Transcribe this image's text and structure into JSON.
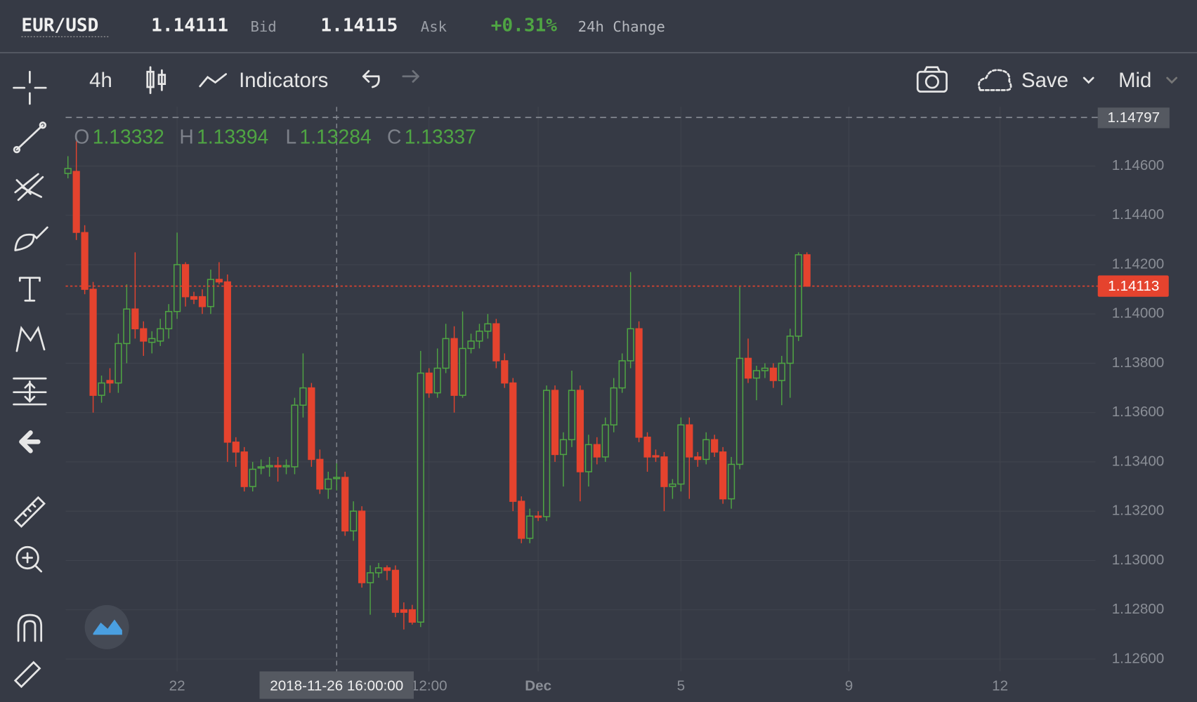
{
  "header": {
    "symbol": "EUR/USD",
    "bid": "1.14111",
    "bid_label": "Bid",
    "ask": "1.14115",
    "ask_label": "Ask",
    "change": "+0.31%",
    "change_label": "24h Change"
  },
  "toolbar": {
    "interval": "4h",
    "indicators": "Indicators",
    "save": "Save",
    "price_mode": "Mid"
  },
  "chart_data": {
    "type": "candlestick",
    "up_color": "#4fa543",
    "down_color": "#e5432e",
    "grid": true,
    "ohlc_labels": [
      "O",
      "H",
      "L",
      "C"
    ],
    "crosshair_label": "2018-11-26 16:00:00",
    "high_marker": 1.14797,
    "last_price": 1.14113,
    "ylim": [
      1.1255,
      1.1484
    ],
    "yticks": [
      {
        "value": 1.126,
        "label": "1.12600"
      },
      {
        "value": 1.128,
        "label": "1.12800"
      },
      {
        "value": 1.13,
        "label": "1.13000"
      },
      {
        "value": 1.132,
        "label": "1.13200"
      },
      {
        "value": 1.134,
        "label": "1.13400"
      },
      {
        "value": 1.136,
        "label": "1.13600"
      },
      {
        "value": 1.138,
        "label": "1.13800"
      },
      {
        "value": 1.14,
        "label": "1.14000"
      },
      {
        "value": 1.142,
        "label": "1.14200"
      },
      {
        "value": 1.144,
        "label": "1.14400"
      },
      {
        "value": 1.146,
        "label": "1.14600"
      }
    ],
    "categories": [
      null,
      null,
      null,
      null,
      null,
      null,
      null,
      null,
      null,
      null,
      null,
      null,
      null,
      "22",
      null,
      null,
      null,
      null,
      null,
      null,
      null,
      null,
      null,
      null,
      null,
      null,
      null,
      null,
      null,
      null,
      null,
      null,
      null,
      null,
      null,
      null,
      null,
      null,
      null,
      null,
      null,
      null,
      null,
      "12:00",
      null,
      null,
      null,
      null,
      null,
      null,
      null,
      null,
      null,
      null,
      null,
      null,
      "Dec",
      null,
      null,
      null,
      null,
      null,
      null,
      null,
      null,
      null,
      null,
      null,
      null,
      null,
      null,
      null,
      null,
      "5",
      null,
      null,
      null,
      null,
      null,
      null,
      null,
      null,
      null,
      null,
      null,
      null,
      null,
      null,
      null,
      null,
      null,
      null,
      null,
      "9",
      null,
      null,
      null,
      null,
      null,
      null,
      null,
      null,
      null,
      null,
      null,
      null,
      null,
      null,
      null,
      null,
      null,
      "12",
      null
    ],
    "open": [
      1.1457,
      1.14578,
      1.1433,
      1.141,
      1.1367,
      1.1373,
      1.1372,
      1.1388,
      1.1402,
      1.1394,
      1.13885,
      1.1389,
      1.1394,
      1.1401,
      1.142,
      1.1407,
      1.1407,
      1.1403,
      1.1414,
      1.1413,
      1.1348,
      1.1344,
      1.133,
      1.13375,
      1.1338,
      1.13385,
      1.1338,
      1.1338,
      1.1363,
      1.137,
      1.1341,
      1.1329,
      1.13332,
      1.13337,
      1.1312,
      1.132,
      1.1291,
      1.1295,
      1.1297,
      1.1296,
      1.128,
      1.128,
      1.1275,
      1.1376,
      1.1368,
      1.1378,
      1.139,
      1.1367,
      1.1386,
      1.1389,
      1.1393,
      1.1396,
      1.1381,
      1.1372,
      1.1324,
      1.1309,
      1.1318,
      1.13178,
      1.1369,
      1.1343,
      1.1349,
      1.1369,
      1.1336,
      1.1347,
      1.1342,
      1.1355,
      1.137,
      1.1381,
      1.1394,
      1.135,
      1.13425,
      1.1342,
      1.133,
      1.1331,
      1.1355,
      1.1342,
      1.1341,
      1.1349,
      1.1344,
      1.1325,
      1.1339,
      1.1382,
      1.1374,
      1.1377,
      1.1378,
      1.1373,
      1.138,
      1.1391,
      1.1424,
      null,
      null,
      null,
      null,
      null,
      null,
      null,
      null,
      null,
      null,
      null,
      null,
      null,
      null,
      null,
      null,
      null,
      null,
      null,
      null,
      null,
      null,
      null,
      null
    ],
    "high": [
      1.1464,
      1.147,
      1.1436,
      1.1413,
      1.1375,
      1.1378,
      1.1392,
      1.1412,
      1.1425,
      1.1397,
      1.1393,
      1.1398,
      1.1404,
      1.1433,
      1.1421,
      1.1409,
      1.141,
      1.1418,
      1.1421,
      1.1416,
      1.135,
      1.1346,
      1.134,
      1.1341,
      1.1342,
      1.1342,
      1.1341,
      1.1366,
      1.1384,
      1.1372,
      1.1345,
      1.1336,
      1.13394,
      1.1336,
      1.1324,
      1.1322,
      1.1298,
      1.1299,
      1.1298,
      1.1298,
      1.1283,
      1.1282,
      1.1385,
      1.1378,
      1.1386,
      1.1396,
      1.1395,
      1.1401,
      1.1392,
      1.1396,
      1.14,
      1.1398,
      1.1384,
      1.1374,
      1.1326,
      1.1321,
      1.132,
      1.1371,
      1.1371,
      1.1352,
      1.1377,
      1.1371,
      1.1351,
      1.135,
      1.1358,
      1.1374,
      1.1384,
      1.1417,
      1.1397,
      1.1352,
      1.1345,
      1.1344,
      1.1333,
      1.1358,
      1.1358,
      1.1344,
      1.1352,
      1.1351,
      1.1346,
      1.1342,
      1.1411,
      1.139,
      1.1379,
      1.138,
      1.138,
      1.1383,
      1.1394,
      1.1425,
      1.1425,
      null,
      null,
      null,
      null,
      null,
      null,
      null,
      null,
      null,
      null,
      null,
      null,
      null,
      null,
      null,
      null,
      null,
      null,
      null,
      null,
      null,
      null,
      null,
      null
    ],
    "low": [
      1.1455,
      1.143,
      1.1408,
      1.136,
      1.1364,
      1.1368,
      1.1368,
      1.138,
      1.139,
      1.1383,
      1.1384,
      1.1387,
      1.139,
      1.1398,
      1.1403,
      1.1404,
      1.14,
      1.14,
      1.1412,
      1.134,
      1.1338,
      1.1328,
      1.1328,
      1.1335,
      1.1334,
      1.1332,
      1.1335,
      1.1335,
      1.1358,
      1.1338,
      1.1327,
      1.1325,
      1.13284,
      1.131,
      1.1308,
      1.1289,
      1.1278,
      1.1293,
      1.1292,
      1.1277,
      1.1272,
      1.1274,
      1.1273,
      1.1366,
      1.1366,
      1.1376,
      1.136,
      1.1366,
      1.1384,
      1.1386,
      1.139,
      1.1378,
      1.137,
      1.132,
      1.1307,
      1.1307,
      1.1316,
      1.1316,
      1.134,
      1.133,
      1.1346,
      1.1324,
      1.133,
      1.1339,
      1.134,
      1.1352,
      1.1368,
      1.1378,
      1.1348,
      1.1336,
      1.134,
      1.132,
      1.1325,
      1.1328,
      1.1325,
      1.1338,
      1.1339,
      1.1342,
      1.1323,
      1.1321,
      1.1337,
      1.1372,
      1.1365,
      1.1374,
      1.137,
      1.1363,
      1.1366,
      1.1389,
      1.1411,
      null,
      null,
      null,
      null,
      null,
      null,
      null,
      null,
      null,
      null,
      null,
      null,
      null,
      null,
      null,
      null,
      null,
      null,
      null,
      null,
      null,
      null,
      null,
      null
    ],
    "close": [
      1.1459,
      1.14331,
      1.141,
      1.1367,
      1.1372,
      1.1372,
      1.1388,
      1.1402,
      1.1394,
      1.1389,
      1.139,
      1.1394,
      1.1401,
      1.142,
      1.1407,
      1.1406,
      1.1403,
      1.1414,
      1.1413,
      1.1348,
      1.1344,
      1.133,
      1.1337,
      1.1338,
      1.13385,
      1.1338,
      1.13385,
      1.1363,
      1.137,
      1.1341,
      1.1329,
      1.1333,
      1.13337,
      1.1312,
      1.132,
      1.1291,
      1.1295,
      1.1297,
      1.1296,
      1.1279,
      1.1279,
      1.1275,
      1.1376,
      1.1368,
      1.1378,
      1.139,
      1.1367,
      1.1386,
      1.1389,
      1.1393,
      1.1396,
      1.1381,
      1.1372,
      1.1324,
      1.1309,
      1.1318,
      1.13178,
      1.1369,
      1.1343,
      1.1349,
      1.1369,
      1.1336,
      1.1347,
      1.1342,
      1.1355,
      1.137,
      1.1381,
      1.1394,
      1.135,
      1.1342,
      1.1342,
      1.133,
      1.1331,
      1.1355,
      1.1342,
      1.1341,
      1.1349,
      1.1344,
      1.1325,
      1.1339,
      1.1382,
      1.1374,
      1.1377,
      1.1378,
      1.1373,
      1.138,
      1.1391,
      1.1424,
      1.14113,
      null,
      null,
      null,
      null,
      null,
      null,
      null,
      null,
      null,
      null,
      null,
      null,
      null,
      null,
      null,
      null,
      null,
      null,
      null,
      null,
      null,
      null,
      null,
      null
    ]
  }
}
